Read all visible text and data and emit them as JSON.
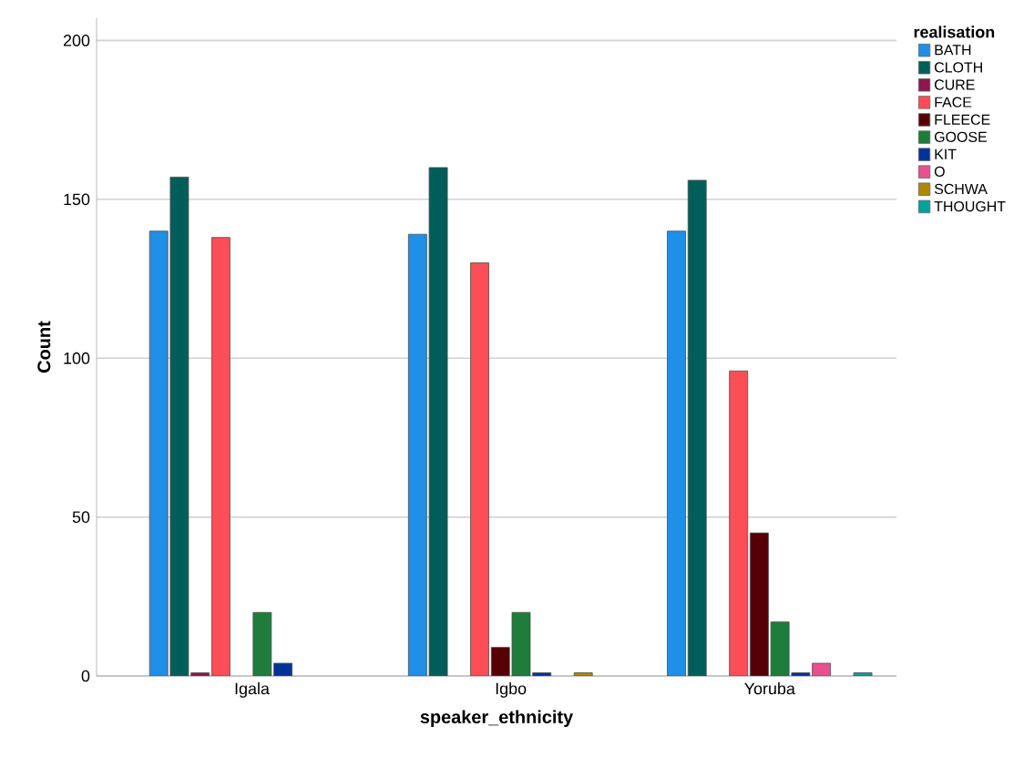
{
  "chart_data": {
    "type": "bar",
    "xlabel": "speaker_ethnicity",
    "ylabel": "Count",
    "legend_title": "realisation",
    "legend": "right",
    "grid": "y",
    "categories": [
      "Igala",
      "Igbo",
      "Yoruba"
    ],
    "ylim": [
      0,
      207
    ],
    "yticks": [
      0,
      50,
      100,
      150,
      200
    ],
    "series": [
      {
        "name": "BATH",
        "color": "#1f8fe8",
        "values": [
          140,
          139,
          140
        ]
      },
      {
        "name": "CLOTH",
        "color": "#005e5a",
        "values": [
          157,
          160,
          156
        ]
      },
      {
        "name": "CURE",
        "color": "#8e1651",
        "values": [
          1,
          null,
          null
        ]
      },
      {
        "name": "FACE",
        "color": "#fb4e57",
        "values": [
          138,
          130,
          96
        ]
      },
      {
        "name": "FLEECE",
        "color": "#560006",
        "values": [
          null,
          9,
          45
        ]
      },
      {
        "name": "GOOSE",
        "color": "#1e7d3a",
        "values": [
          20,
          20,
          17
        ]
      },
      {
        "name": "KIT",
        "color": "#00339a",
        "values": [
          4,
          1,
          1
        ]
      },
      {
        "name": "O",
        "color": "#e9508f",
        "values": [
          null,
          null,
          4
        ]
      },
      {
        "name": "SCHWA",
        "color": "#b38600",
        "values": [
          null,
          1,
          null
        ]
      },
      {
        "name": "THOUGHT",
        "color": "#00a39b",
        "values": [
          null,
          null,
          1
        ]
      }
    ]
  }
}
